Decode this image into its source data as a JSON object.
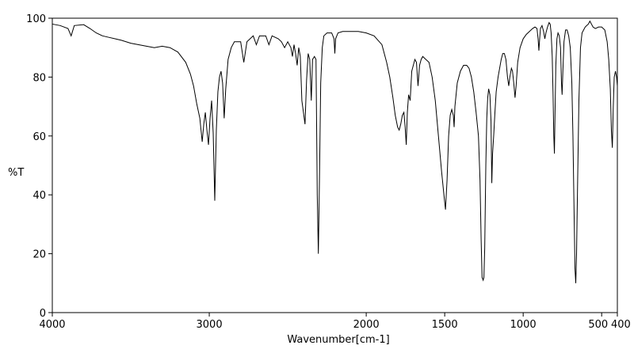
{
  "chart_data": {
    "type": "line",
    "title": "",
    "xlabel": "Wavenumber[cm-1]",
    "ylabel": "%T",
    "xlim": [
      4000,
      400
    ],
    "ylim": [
      0,
      100
    ],
    "x_reversed": true,
    "grid": false,
    "line_color": "#000000",
    "x_ticks": [
      4000,
      3000,
      2000,
      1500,
      1000,
      500,
      400
    ],
    "x_tick_labels": [
      "4000",
      "3000",
      "2000",
      "1500",
      "1000",
      "500",
      "400"
    ],
    "y_ticks": [
      0,
      20,
      40,
      60,
      80,
      100
    ],
    "y_tick_labels": [
      "0",
      "20",
      "40",
      "60",
      "80",
      "100"
    ],
    "series": [
      {
        "points": [
          [
            4000,
            98
          ],
          [
            3950,
            97.5
          ],
          [
            3900,
            96.5
          ],
          [
            3880,
            94
          ],
          [
            3860,
            97.5
          ],
          [
            3800,
            97.8
          ],
          [
            3760,
            96.5
          ],
          [
            3720,
            95
          ],
          [
            3680,
            94
          ],
          [
            3640,
            93.5
          ],
          [
            3600,
            93
          ],
          [
            3560,
            92.5
          ],
          [
            3500,
            91.5
          ],
          [
            3450,
            91
          ],
          [
            3400,
            90.5
          ],
          [
            3350,
            90
          ],
          [
            3300,
            90.5
          ],
          [
            3250,
            90
          ],
          [
            3200,
            88.5
          ],
          [
            3150,
            85
          ],
          [
            3120,
            81
          ],
          [
            3100,
            77
          ],
          [
            3080,
            71
          ],
          [
            3060,
            66
          ],
          [
            3045,
            58
          ],
          [
            3035,
            64
          ],
          [
            3025,
            68
          ],
          [
            3015,
            62
          ],
          [
            3005,
            57
          ],
          [
            2995,
            66
          ],
          [
            2985,
            72
          ],
          [
            2975,
            61
          ],
          [
            2965,
            38
          ],
          [
            2955,
            62
          ],
          [
            2945,
            75
          ],
          [
            2935,
            80
          ],
          [
            2925,
            82
          ],
          [
            2915,
            78
          ],
          [
            2905,
            66
          ],
          [
            2895,
            76
          ],
          [
            2880,
            86
          ],
          [
            2860,
            90
          ],
          [
            2840,
            92
          ],
          [
            2800,
            92
          ],
          [
            2780,
            85
          ],
          [
            2760,
            92
          ],
          [
            2720,
            94
          ],
          [
            2700,
            91
          ],
          [
            2680,
            94
          ],
          [
            2640,
            94
          ],
          [
            2620,
            91
          ],
          [
            2600,
            94
          ],
          [
            2560,
            93
          ],
          [
            2540,
            92
          ],
          [
            2520,
            90
          ],
          [
            2500,
            92
          ],
          [
            2480,
            90
          ],
          [
            2470,
            87
          ],
          [
            2460,
            91
          ],
          [
            2450,
            88
          ],
          [
            2440,
            84
          ],
          [
            2430,
            90
          ],
          [
            2420,
            87
          ],
          [
            2410,
            72
          ],
          [
            2400,
            68
          ],
          [
            2390,
            64
          ],
          [
            2380,
            79
          ],
          [
            2370,
            88
          ],
          [
            2360,
            86
          ],
          [
            2350,
            72
          ],
          [
            2342,
            86
          ],
          [
            2330,
            87
          ],
          [
            2320,
            86
          ],
          [
            2312,
            40
          ],
          [
            2305,
            20
          ],
          [
            2298,
            45
          ],
          [
            2290,
            78
          ],
          [
            2280,
            90
          ],
          [
            2270,
            94
          ],
          [
            2250,
            95
          ],
          [
            2220,
            95
          ],
          [
            2205,
            93
          ],
          [
            2200,
            88
          ],
          [
            2195,
            93
          ],
          [
            2180,
            95
          ],
          [
            2150,
            95.5
          ],
          [
            2100,
            95.5
          ],
          [
            2050,
            95.5
          ],
          [
            2000,
            95
          ],
          [
            1950,
            94
          ],
          [
            1900,
            91
          ],
          [
            1870,
            85
          ],
          [
            1850,
            80
          ],
          [
            1830,
            73
          ],
          [
            1815,
            67
          ],
          [
            1800,
            63
          ],
          [
            1790,
            62
          ],
          [
            1780,
            64
          ],
          [
            1770,
            67
          ],
          [
            1760,
            68
          ],
          [
            1752,
            63
          ],
          [
            1745,
            57
          ],
          [
            1738,
            68
          ],
          [
            1730,
            74
          ],
          [
            1720,
            72
          ],
          [
            1710,
            82
          ],
          [
            1700,
            84
          ],
          [
            1690,
            86
          ],
          [
            1680,
            85
          ],
          [
            1670,
            77
          ],
          [
            1660,
            84
          ],
          [
            1650,
            86
          ],
          [
            1640,
            87
          ],
          [
            1620,
            86
          ],
          [
            1600,
            85
          ],
          [
            1580,
            80
          ],
          [
            1560,
            72
          ],
          [
            1540,
            60
          ],
          [
            1520,
            48
          ],
          [
            1505,
            40
          ],
          [
            1495,
            35
          ],
          [
            1485,
            45
          ],
          [
            1475,
            60
          ],
          [
            1465,
            67
          ],
          [
            1455,
            69
          ],
          [
            1445,
            67
          ],
          [
            1440,
            63
          ],
          [
            1435,
            70
          ],
          [
            1420,
            78
          ],
          [
            1400,
            82
          ],
          [
            1380,
            84
          ],
          [
            1360,
            84
          ],
          [
            1345,
            83
          ],
          [
            1330,
            80
          ],
          [
            1315,
            75
          ],
          [
            1300,
            68
          ],
          [
            1285,
            60
          ],
          [
            1275,
            45
          ],
          [
            1268,
            25
          ],
          [
            1262,
            12
          ],
          [
            1255,
            11
          ],
          [
            1250,
            12
          ],
          [
            1245,
            22
          ],
          [
            1238,
            50
          ],
          [
            1232,
            66
          ],
          [
            1226,
            73
          ],
          [
            1220,
            76
          ],
          [
            1212,
            74
          ],
          [
            1205,
            65
          ],
          [
            1200,
            44
          ],
          [
            1195,
            54
          ],
          [
            1188,
            60
          ],
          [
            1180,
            68
          ],
          [
            1172,
            75
          ],
          [
            1160,
            80
          ],
          [
            1150,
            83
          ],
          [
            1140,
            86
          ],
          [
            1130,
            88
          ],
          [
            1120,
            88
          ],
          [
            1110,
            86
          ],
          [
            1100,
            80
          ],
          [
            1092,
            77
          ],
          [
            1085,
            80
          ],
          [
            1075,
            83
          ],
          [
            1068,
            82
          ],
          [
            1060,
            78
          ],
          [
            1052,
            73
          ],
          [
            1045,
            77
          ],
          [
            1035,
            85
          ],
          [
            1020,
            90
          ],
          [
            1000,
            93
          ],
          [
            980,
            94.5
          ],
          [
            960,
            95.5
          ],
          [
            940,
            96.5
          ],
          [
            925,
            97
          ],
          [
            912,
            96.5
          ],
          [
            905,
            93
          ],
          [
            900,
            89
          ],
          [
            895,
            93
          ],
          [
            890,
            96.5
          ],
          [
            880,
            97.5
          ],
          [
            870,
            95.5
          ],
          [
            862,
            93
          ],
          [
            855,
            95
          ],
          [
            845,
            97
          ],
          [
            835,
            98.5
          ],
          [
            828,
            98
          ],
          [
            822,
            95
          ],
          [
            815,
            87
          ],
          [
            810,
            75
          ],
          [
            805,
            60
          ],
          [
            801,
            54
          ],
          [
            797,
            68
          ],
          [
            792,
            84
          ],
          [
            785,
            93
          ],
          [
            778,
            95
          ],
          [
            770,
            94
          ],
          [
            762,
            90
          ],
          [
            756,
            78
          ],
          [
            752,
            74
          ],
          [
            747,
            82
          ],
          [
            740,
            92
          ],
          [
            730,
            96
          ],
          [
            720,
            96
          ],
          [
            710,
            94
          ],
          [
            700,
            90
          ],
          [
            690,
            78
          ],
          [
            683,
            60
          ],
          [
            676,
            35
          ],
          [
            670,
            15
          ],
          [
            665,
            10
          ],
          [
            660,
            20
          ],
          [
            653,
            45
          ],
          [
            645,
            72
          ],
          [
            635,
            90
          ],
          [
            625,
            95
          ],
          [
            615,
            96
          ],
          [
            605,
            97
          ],
          [
            595,
            97.5
          ],
          [
            585,
            98
          ],
          [
            575,
            99
          ],
          [
            565,
            98
          ],
          [
            555,
            97
          ],
          [
            540,
            96.5
          ],
          [
            520,
            97
          ],
          [
            500,
            97
          ],
          [
            480,
            96
          ],
          [
            465,
            92
          ],
          [
            455,
            86
          ],
          [
            445,
            76
          ],
          [
            438,
            62
          ],
          [
            432,
            56
          ],
          [
            426,
            70
          ],
          [
            420,
            80
          ],
          [
            412,
            82
          ],
          [
            405,
            80
          ],
          [
            400,
            77
          ]
        ]
      }
    ]
  }
}
